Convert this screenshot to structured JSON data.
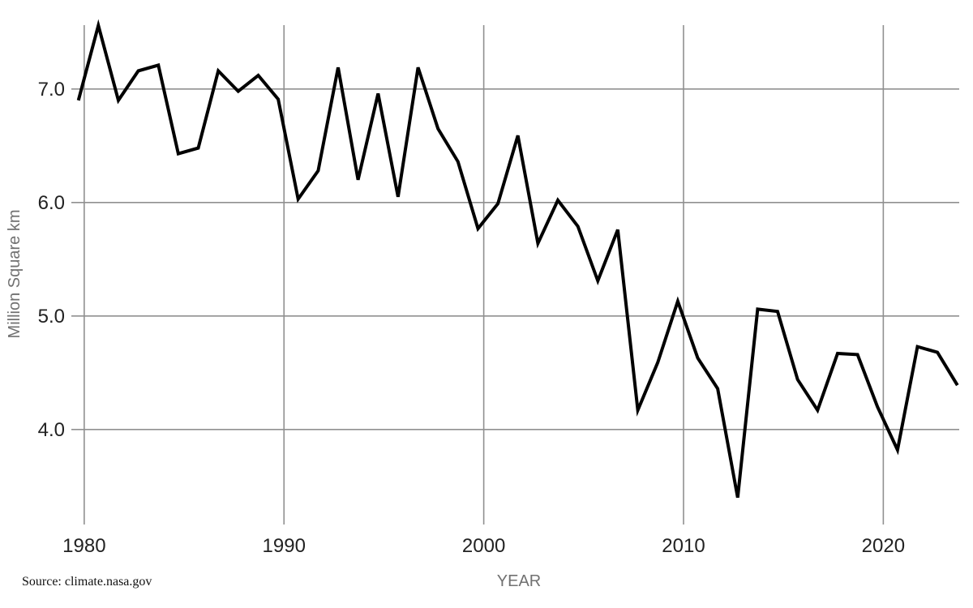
{
  "page": {
    "background": "#ffffff"
  },
  "source_note": "Source: climate.nasa.gov",
  "chart_data": {
    "type": "line",
    "title": "",
    "xlabel": "YEAR",
    "ylabel": "Million Square km",
    "legend": null,
    "grid": true,
    "years": [
      1979,
      1980,
      1981,
      1982,
      1983,
      1984,
      1985,
      1986,
      1987,
      1988,
      1989,
      1990,
      1991,
      1992,
      1993,
      1994,
      1995,
      1996,
      1997,
      1998,
      1999,
      2000,
      2001,
      2002,
      2003,
      2004,
      2005,
      2006,
      2007,
      2008,
      2009,
      2010,
      2011,
      2012,
      2013,
      2014,
      2015,
      2016,
      2017,
      2018,
      2019,
      2020,
      2021,
      2022,
      2023
    ],
    "values": [
      6.9,
      7.56,
      6.9,
      7.16,
      7.21,
      6.43,
      6.48,
      7.16,
      6.98,
      7.12,
      6.91,
      6.03,
      6.28,
      7.19,
      6.2,
      6.96,
      6.05,
      7.19,
      6.65,
      6.36,
      5.77,
      5.99,
      6.59,
      5.64,
      6.02,
      5.79,
      5.31,
      5.76,
      4.17,
      4.59,
      5.13,
      4.63,
      4.36,
      3.4,
      5.06,
      5.04,
      4.44,
      4.17,
      4.67,
      4.66,
      4.2,
      3.82,
      4.73,
      4.68,
      4.39
    ],
    "x_offset_years": 0.71,
    "xlim": [
      1979.6,
      2023.8
    ],
    "ylim": [
      3.17,
      7.57
    ],
    "xticks": [
      1980,
      1990,
      2000,
      2010,
      2020
    ],
    "xtick_labels": [
      "1980",
      "1990",
      "2000",
      "2010",
      "2020"
    ],
    "yticks": [
      4.0,
      5.0,
      6.0,
      7.0
    ],
    "ytick_labels": [
      "4.0",
      "5.0",
      "6.0",
      "7.0"
    ],
    "line_color": "#000000",
    "line_width": 4,
    "grid_color": "#909090",
    "tick_label_color": "#222222",
    "axis_title_color": "#717171"
  }
}
